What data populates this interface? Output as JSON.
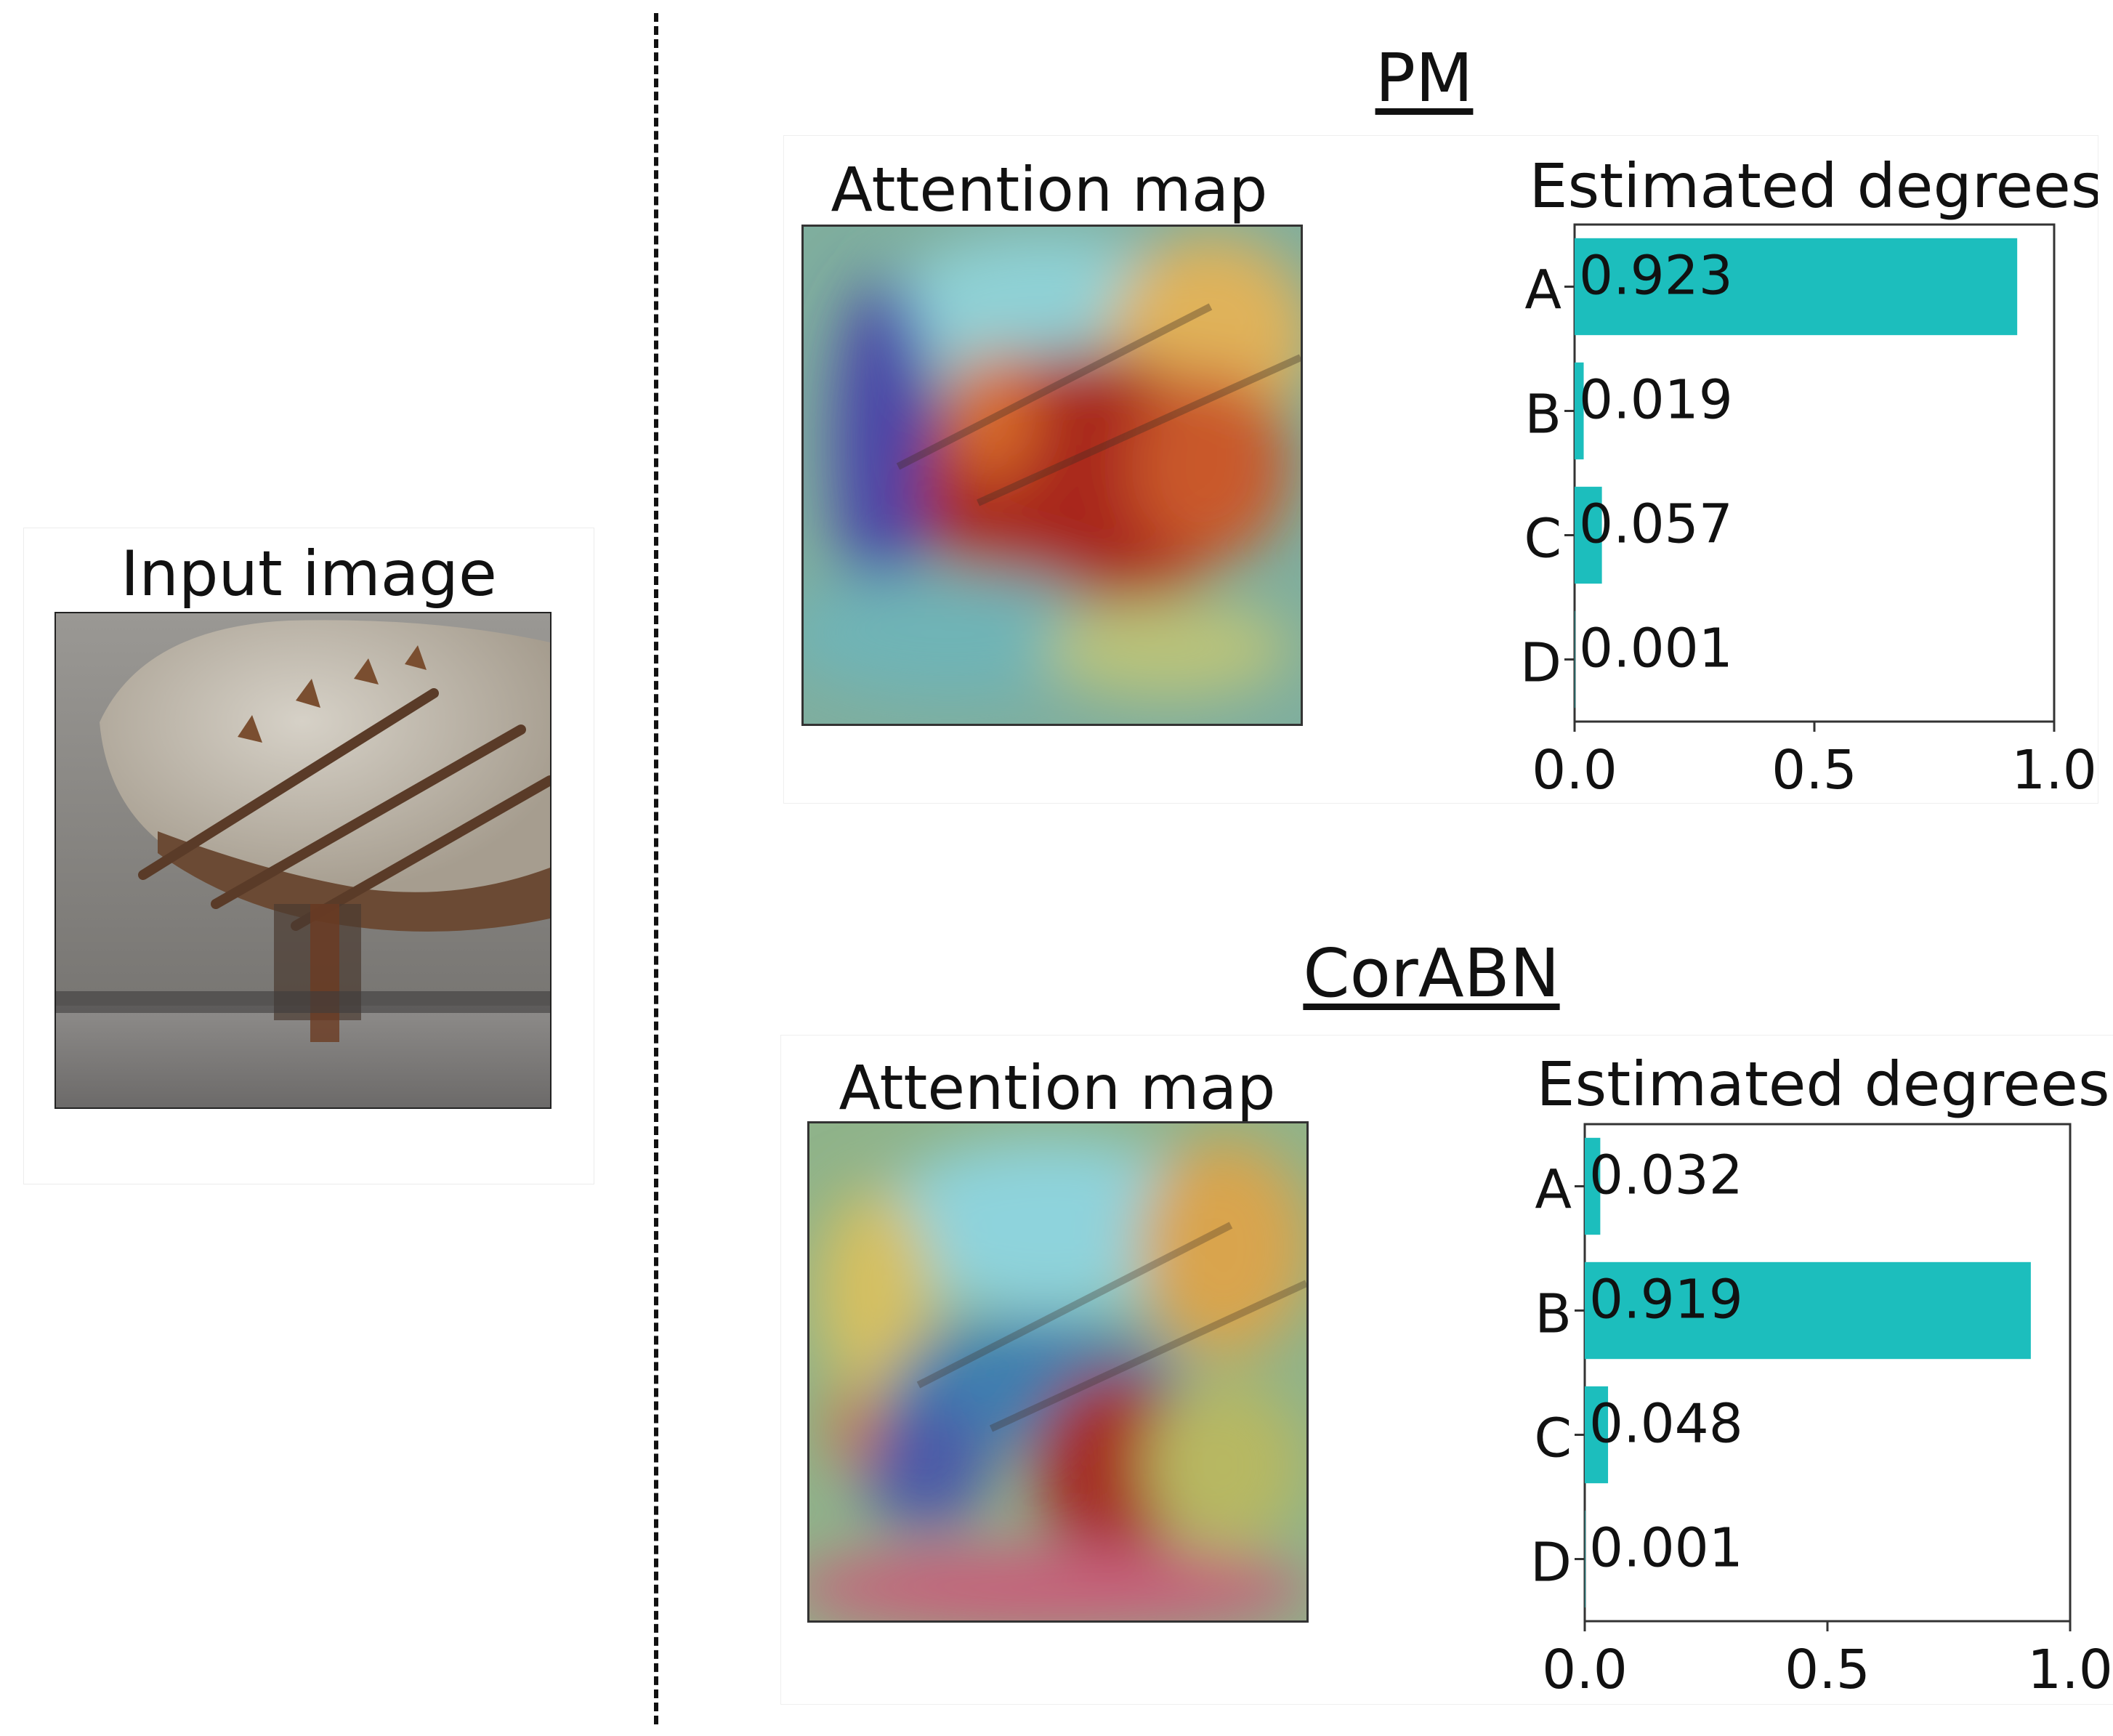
{
  "input": {
    "title": "Input image"
  },
  "colors": {
    "bar": "#1cbebd"
  },
  "chart_data": [
    {
      "type": "bar",
      "orientation": "horizontal",
      "group_title": "PM",
      "image_title": "Attention map",
      "title": "Estimated degrees",
      "categories": [
        "A",
        "B",
        "C",
        "D"
      ],
      "values": [
        0.923,
        0.019,
        0.057,
        0.001
      ],
      "value_labels": [
        "0.923",
        "0.019",
        "0.057",
        "0.001"
      ],
      "xticks": [
        "0.0",
        "0.5",
        "1.0"
      ],
      "xlim": [
        0,
        1
      ],
      "grid": false
    },
    {
      "type": "bar",
      "orientation": "horizontal",
      "group_title": "CorABN",
      "image_title": "Attention map",
      "title": "Estimated degrees",
      "categories": [
        "A",
        "B",
        "C",
        "D"
      ],
      "values": [
        0.032,
        0.919,
        0.048,
        0.001
      ],
      "value_labels": [
        "0.032",
        "0.919",
        "0.048",
        "0.001"
      ],
      "xticks": [
        "0.0",
        "0.5",
        "1.0"
      ],
      "xlim": [
        0,
        1
      ],
      "grid": false
    }
  ]
}
